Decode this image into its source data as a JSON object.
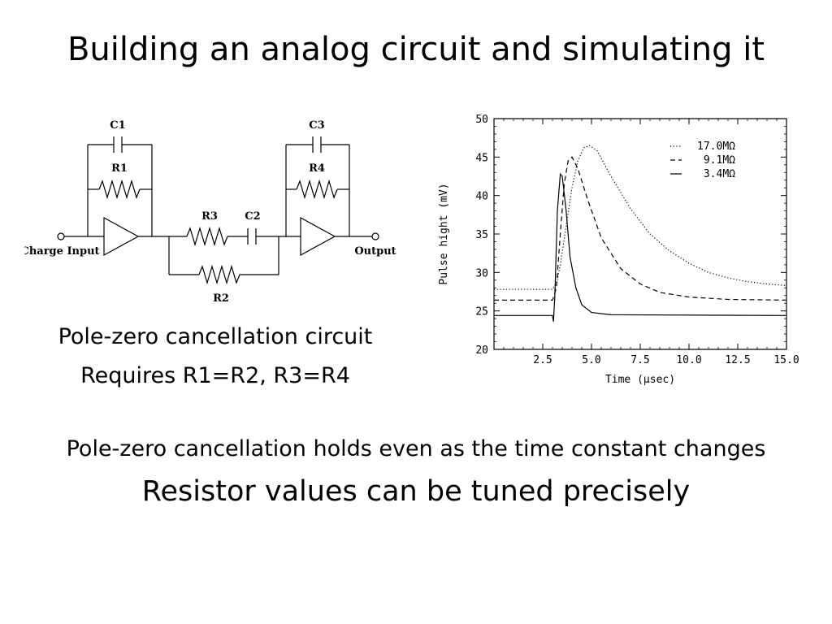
{
  "slide": {
    "title": "Building an analog circuit and simulating it",
    "caption_line1": "Pole-zero cancellation circuit",
    "caption_line2": "Requires R1=R2, R3=R4",
    "note_line1": "Pole-zero cancellation holds even as the time constant changes",
    "note_line2": "Resistor values can be tuned precisely"
  },
  "circuit": {
    "labels": {
      "c1": "C1",
      "r1": "R1",
      "c3": "C3",
      "r4": "R4",
      "r3": "R3",
      "c2": "C2",
      "r2": "R2",
      "input": "Charge Input",
      "output": "Output"
    }
  },
  "chart_data": {
    "type": "line",
    "xlabel": "Time (μsec)",
    "ylabel": "Pulse hight (mV)",
    "xlim": [
      0,
      15
    ],
    "ylim": [
      20,
      50
    ],
    "x_ticks": [
      "2.5",
      "5.0",
      "7.5",
      "10.0",
      "12.5",
      "15.0"
    ],
    "y_ticks": [
      "20",
      "25",
      "30",
      "35",
      "40",
      "45",
      "50"
    ],
    "legend_position": "top-right",
    "series": [
      {
        "name": "17.0MΩ",
        "style": "dotted",
        "points": [
          [
            0,
            27.8
          ],
          [
            3.0,
            27.8
          ],
          [
            3.2,
            28.5
          ],
          [
            3.4,
            31
          ],
          [
            3.7,
            36
          ],
          [
            4.0,
            41
          ],
          [
            4.3,
            44.5
          ],
          [
            4.6,
            46.2
          ],
          [
            4.9,
            46.5
          ],
          [
            5.3,
            45.8
          ],
          [
            6.0,
            42.5
          ],
          [
            7.0,
            38.3
          ],
          [
            8.0,
            35
          ],
          [
            9.0,
            32.8
          ],
          [
            10.0,
            31.2
          ],
          [
            11.0,
            30.0
          ],
          [
            12.0,
            29.3
          ],
          [
            13.0,
            28.8
          ],
          [
            14.0,
            28.5
          ],
          [
            15.0,
            28.3
          ]
        ]
      },
      {
        "name": "9.1MΩ",
        "style": "dashed",
        "points": [
          [
            0,
            26.4
          ],
          [
            3.0,
            26.4
          ],
          [
            3.2,
            28
          ],
          [
            3.4,
            35
          ],
          [
            3.6,
            41.5
          ],
          [
            3.8,
            44.5
          ],
          [
            4.0,
            45
          ],
          [
            4.3,
            43.5
          ],
          [
            4.8,
            39.5
          ],
          [
            5.5,
            34.5
          ],
          [
            6.5,
            30.5
          ],
          [
            7.5,
            28.5
          ],
          [
            8.5,
            27.4
          ],
          [
            10.0,
            26.8
          ],
          [
            12.0,
            26.5
          ],
          [
            15.0,
            26.4
          ]
        ]
      },
      {
        "name": "3.4MΩ",
        "style": "solid",
        "points": [
          [
            0,
            24.4
          ],
          [
            3.0,
            24.4
          ],
          [
            3.05,
            23.6
          ],
          [
            3.12,
            27
          ],
          [
            3.25,
            38
          ],
          [
            3.4,
            42.8
          ],
          [
            3.5,
            42.5
          ],
          [
            3.7,
            38
          ],
          [
            3.9,
            32
          ],
          [
            4.2,
            28
          ],
          [
            4.5,
            25.8
          ],
          [
            5.0,
            24.8
          ],
          [
            6.0,
            24.5
          ],
          [
            15.0,
            24.4
          ]
        ]
      }
    ]
  }
}
